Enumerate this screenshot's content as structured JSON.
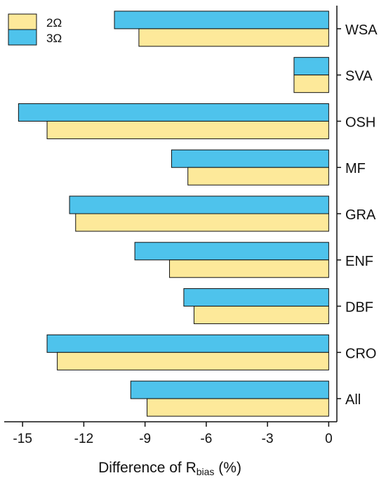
{
  "chart_data": {
    "type": "bar",
    "orientation": "horizontal",
    "categories": [
      "WSA",
      "SVA",
      "OSH",
      "MF",
      "GRA",
      "ENF",
      "DBF",
      "CRO",
      "All"
    ],
    "series": [
      {
        "name": "2Ω",
        "color": "#fde99a",
        "values": [
          -9.3,
          -1.7,
          -13.8,
          -6.9,
          -12.4,
          -7.8,
          -6.6,
          -13.3,
          -8.9
        ]
      },
      {
        "name": "3Ω",
        "color": "#4ec3ec",
        "values": [
          -10.5,
          -1.7,
          -15.2,
          -7.7,
          -12.7,
          -9.5,
          -7.1,
          -13.8,
          -9.7
        ]
      }
    ],
    "xlabel_main": "Difference of R",
    "xlabel_sub": "bias",
    "xlabel_unit": " (%)",
    "xlim": [
      -15.9,
      0.4
    ],
    "xticks": [
      -15,
      -12,
      -9,
      -6,
      -3,
      0
    ],
    "xtick_labels": [
      "-15",
      "-12",
      "-9",
      "-6",
      "-3",
      "0"
    ],
    "legend_position": "top-left",
    "grid": false
  }
}
